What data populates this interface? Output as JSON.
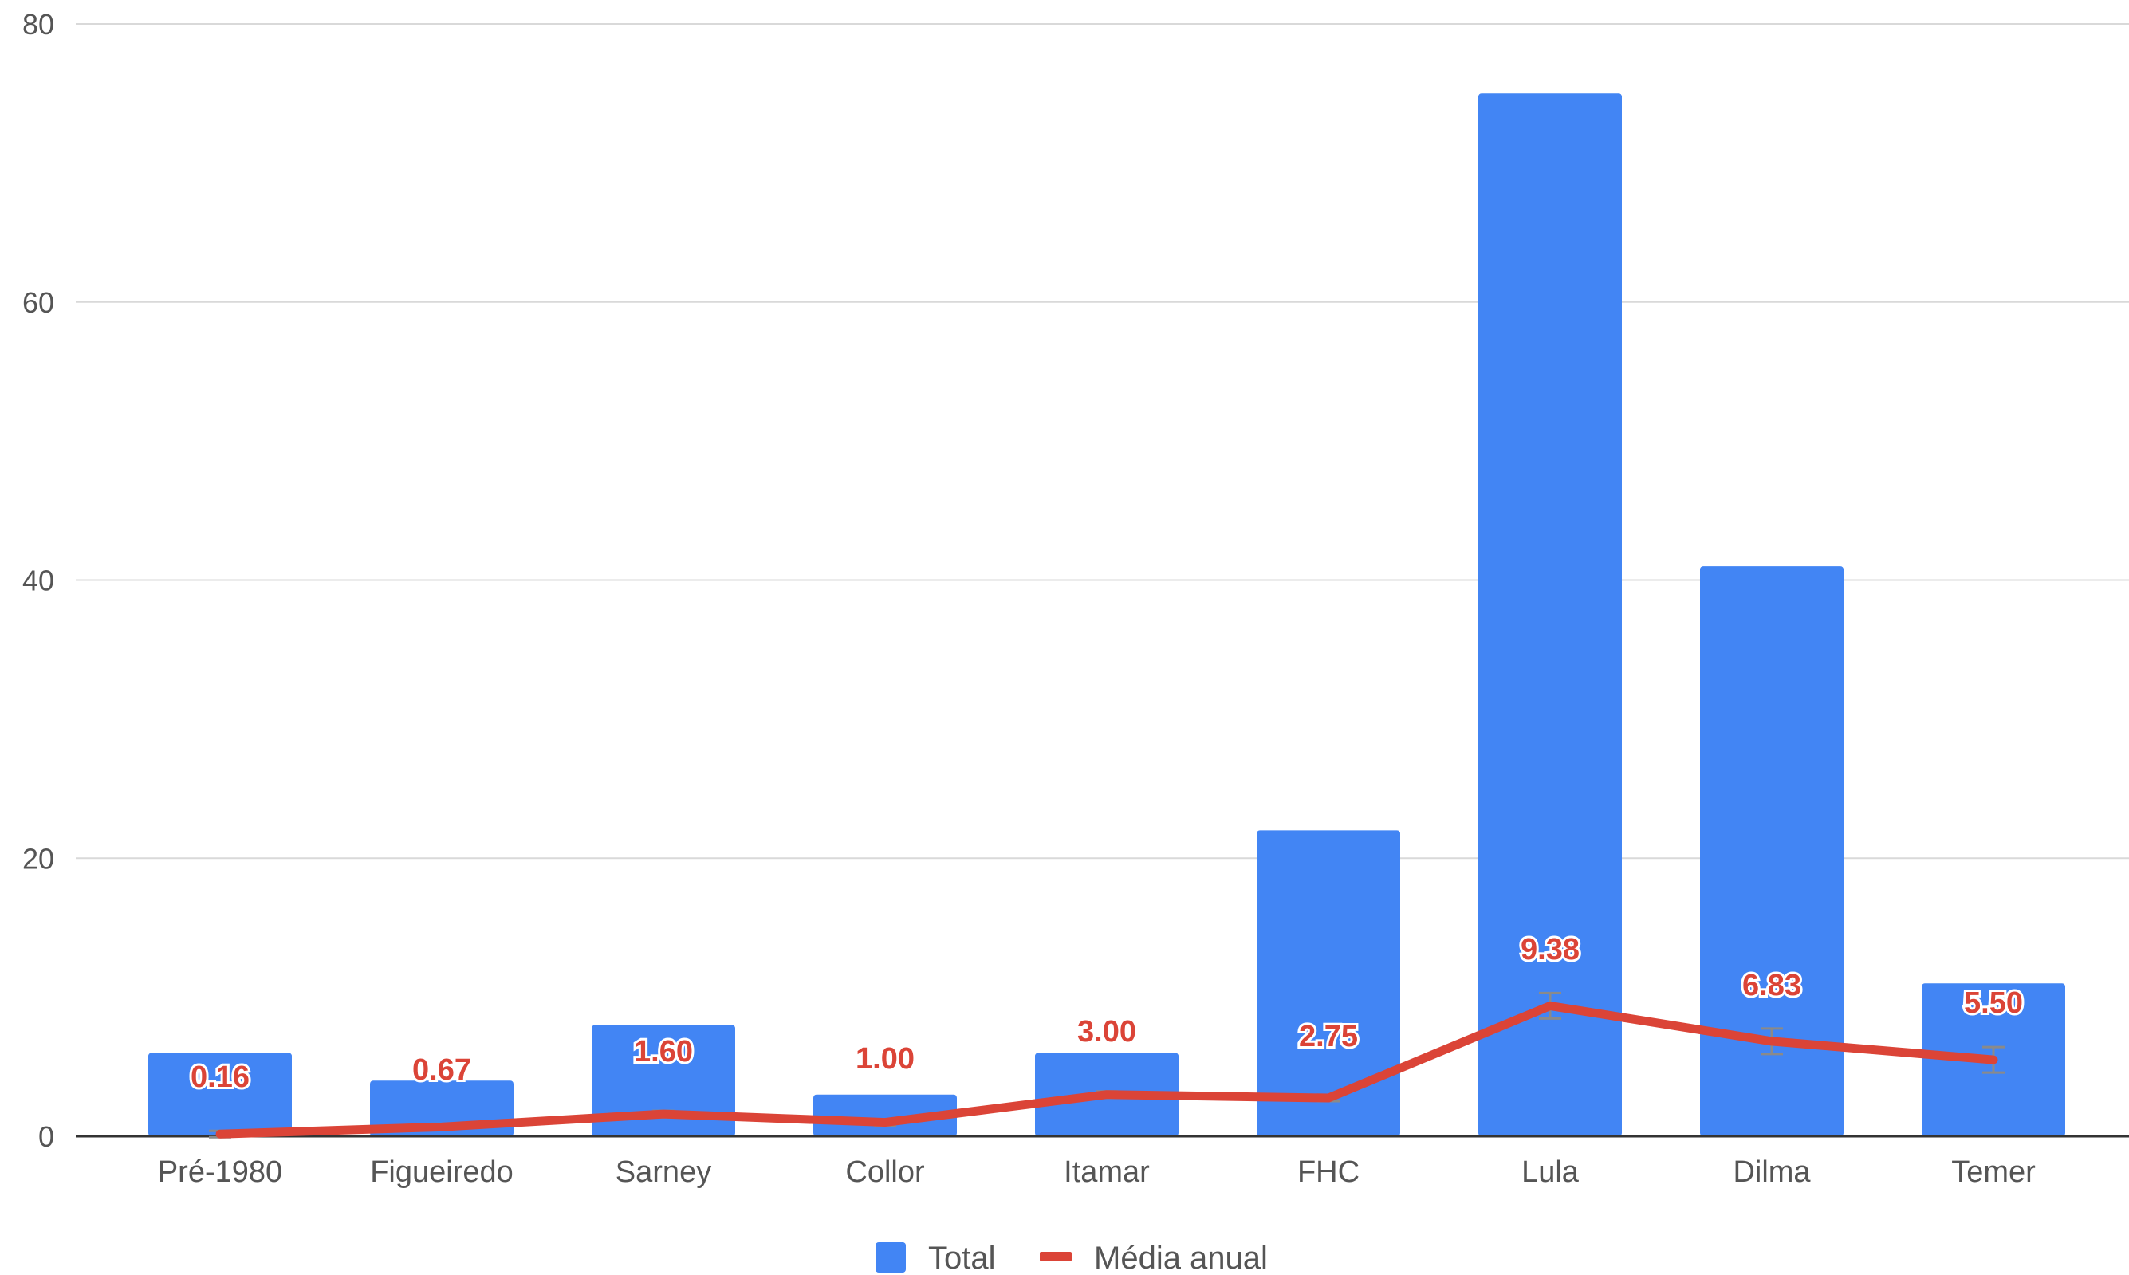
{
  "colors": {
    "bar": "#4285f4",
    "line": "#db4437",
    "grid": "#d9d9d9",
    "axis": "#333333",
    "text": "#555555"
  },
  "chart_data": {
    "type": "bar",
    "categories": [
      "Pré-1980",
      "Figueiredo",
      "Sarney",
      "Collor",
      "Itamar",
      "FHC",
      "Lula",
      "Dilma",
      "Temer"
    ],
    "series": [
      {
        "name": "Total",
        "type": "bar",
        "color": "#4285f4",
        "values": [
          6,
          4,
          8,
          3,
          6,
          22,
          75,
          41,
          11
        ]
      },
      {
        "name": "Média anual",
        "type": "line",
        "color": "#db4437",
        "values": [
          0.16,
          0.67,
          1.6,
          1.0,
          3.0,
          2.75,
          9.38,
          6.83,
          5.5
        ],
        "data_labels": [
          "0.16",
          "0.67",
          "1.60",
          "1.00",
          "3.00",
          "2.75",
          "9.38",
          "6.83",
          "5.50"
        ],
        "error_bars": true
      }
    ],
    "y_ticks": [
      "0",
      "20",
      "40",
      "60",
      "80"
    ],
    "ylim": [
      0,
      80
    ],
    "grid": true,
    "legend_position": "bottom-center",
    "legend": [
      "Total",
      "Média anual"
    ]
  }
}
